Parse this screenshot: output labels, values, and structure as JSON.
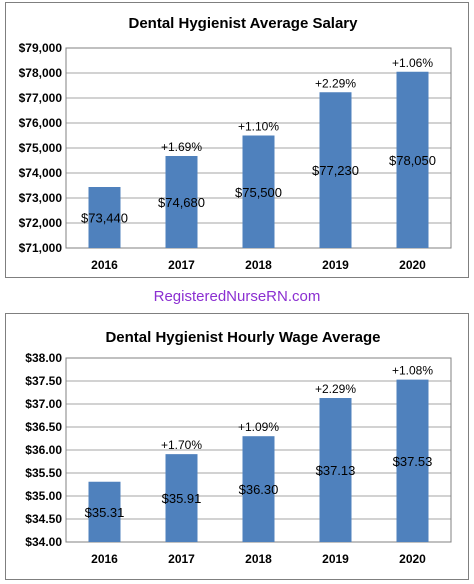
{
  "site_label": "RegisteredNurseRN.com",
  "chart_data": [
    {
      "type": "bar",
      "title": "Dental Hygienist Average Salary",
      "categories": [
        "2016",
        "2017",
        "2018",
        "2019",
        "2020"
      ],
      "values": [
        73440,
        74680,
        75500,
        77230,
        78050
      ],
      "value_labels": [
        "$73,440",
        "$74,680",
        "$75,500",
        "$77,230",
        "$78,050"
      ],
      "change_labels": [
        "",
        "+1.69%",
        "+1.10%",
        "+2.29%",
        "+1.06%"
      ],
      "yticks": [
        71000,
        72000,
        73000,
        74000,
        75000,
        76000,
        77000,
        78000,
        79000
      ],
      "ytick_labels": [
        "$71,000",
        "$72,000",
        "$73,000",
        "$74,000",
        "$75,000",
        "$76,000",
        "$77,000",
        "$78,000",
        "$79,000"
      ],
      "ylim": [
        71000,
        79000
      ],
      "xlabel": "",
      "ylabel": "",
      "grid": true,
      "bar_color": "#4f81bd"
    },
    {
      "type": "bar",
      "title": "Dental Hygienist Hourly Wage Average",
      "categories": [
        "2016",
        "2017",
        "2018",
        "2019",
        "2020"
      ],
      "values": [
        35.31,
        35.91,
        36.3,
        37.13,
        37.53
      ],
      "value_labels": [
        "$35.31",
        "$35.91",
        "$36.30",
        "$37.13",
        "$37.53"
      ],
      "change_labels": [
        "",
        "+1.70%",
        "+1.09%",
        "+2.29%",
        "+1.08%"
      ],
      "yticks": [
        34.0,
        34.5,
        35.0,
        35.5,
        36.0,
        36.5,
        37.0,
        37.5,
        38.0
      ],
      "ytick_labels": [
        "$34.00",
        "$34.50",
        "$35.00",
        "$35.50",
        "$36.00",
        "$36.50",
        "$37.00",
        "$37.50",
        "$38.00"
      ],
      "ylim": [
        34.0,
        38.0
      ],
      "xlabel": "",
      "ylabel": "",
      "grid": true,
      "bar_color": "#4f81bd"
    }
  ]
}
